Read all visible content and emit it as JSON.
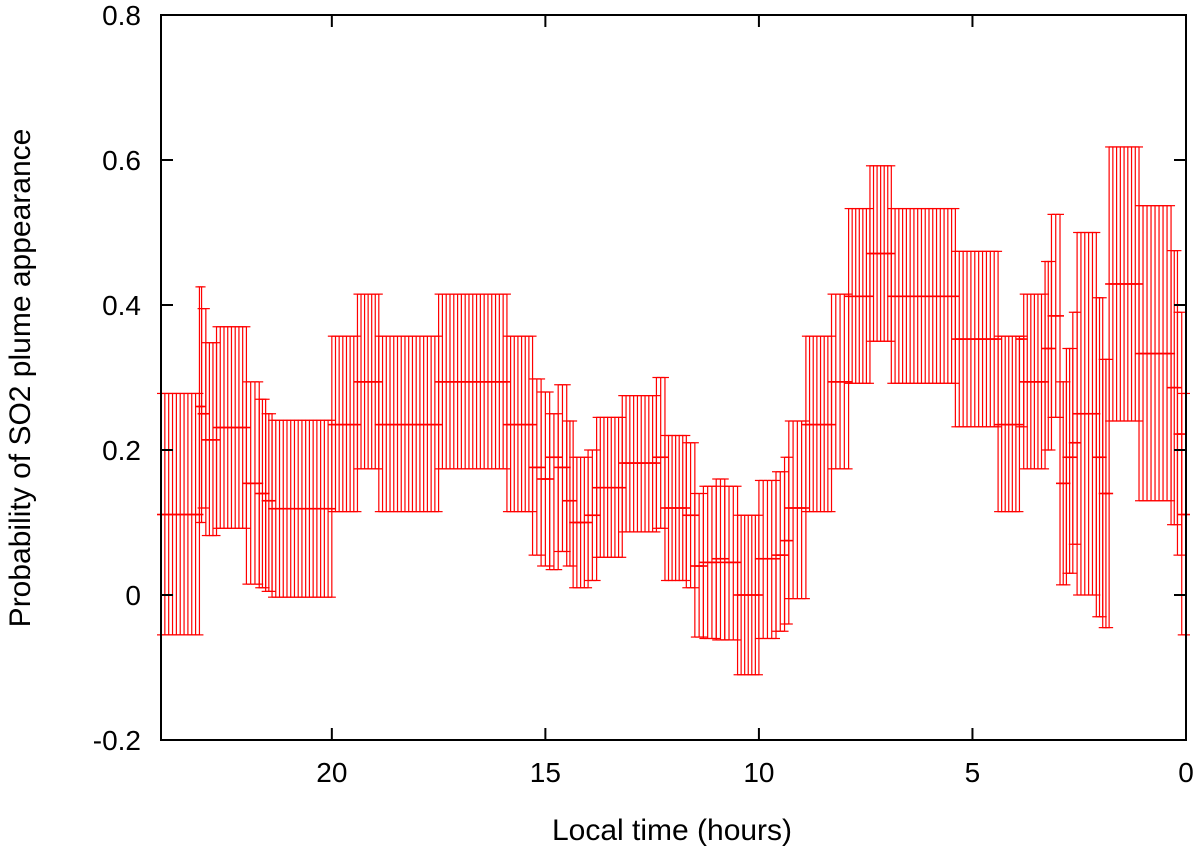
{
  "chart_data": {
    "type": "scatter",
    "xlabel": "Local time (hours)",
    "ylabel": "Probability of SO2 plume appearance",
    "xlim": [
      24,
      0
    ],
    "ylim": [
      -0.2,
      0.8
    ],
    "x_reversed": true,
    "grid": false,
    "xticks": [
      20,
      15,
      10,
      5,
      0
    ],
    "yticks": [
      -0.2,
      0,
      0.2,
      0.4,
      0.6,
      0.8
    ],
    "ytick_labels": [
      "-0.2",
      "0",
      "0.2",
      "0.4",
      "0.6",
      "0.8"
    ],
    "series_color": "#ff0000",
    "segments": [
      {
        "from": 24.0,
        "to": 23.1,
        "y": 0.111,
        "lo": -0.055,
        "hi": 0.278
      },
      {
        "from": 23.1,
        "to": 23.05,
        "y": 0.26,
        "lo": 0.1,
        "hi": 0.425
      },
      {
        "from": 23.05,
        "to": 22.95,
        "y": 0.25,
        "lo": 0.12,
        "hi": 0.395
      },
      {
        "from": 22.95,
        "to": 22.7,
        "y": 0.214,
        "lo": 0.082,
        "hi": 0.348
      },
      {
        "from": 22.7,
        "to": 22.0,
        "y": 0.231,
        "lo": 0.092,
        "hi": 0.37
      },
      {
        "from": 22.0,
        "to": 21.7,
        "y": 0.154,
        "lo": 0.015,
        "hi": 0.294
      },
      {
        "from": 21.7,
        "to": 21.55,
        "y": 0.14,
        "lo": 0.01,
        "hi": 0.27
      },
      {
        "from": 21.55,
        "to": 21.4,
        "y": 0.13,
        "lo": 0.005,
        "hi": 0.25
      },
      {
        "from": 21.4,
        "to": 20.0,
        "y": 0.119,
        "lo": -0.003,
        "hi": 0.241
      },
      {
        "from": 20.0,
        "to": 19.4,
        "y": 0.235,
        "lo": 0.115,
        "hi": 0.357
      },
      {
        "from": 19.4,
        "to": 18.9,
        "y": 0.294,
        "lo": 0.174,
        "hi": 0.415
      },
      {
        "from": 18.9,
        "to": 17.5,
        "y": 0.235,
        "lo": 0.115,
        "hi": 0.357
      },
      {
        "from": 17.5,
        "to": 15.9,
        "y": 0.294,
        "lo": 0.174,
        "hi": 0.415
      },
      {
        "from": 15.9,
        "to": 15.3,
        "y": 0.235,
        "lo": 0.115,
        "hi": 0.357
      },
      {
        "from": 15.3,
        "to": 15.1,
        "y": 0.176,
        "lo": 0.055,
        "hi": 0.298
      },
      {
        "from": 15.1,
        "to": 14.9,
        "y": 0.16,
        "lo": 0.04,
        "hi": 0.28
      },
      {
        "from": 14.9,
        "to": 14.7,
        "y": 0.19,
        "lo": 0.035,
        "hi": 0.25
      },
      {
        "from": 14.7,
        "to": 14.5,
        "y": 0.176,
        "lo": 0.06,
        "hi": 0.29
      },
      {
        "from": 14.5,
        "to": 14.35,
        "y": 0.13,
        "lo": 0.04,
        "hi": 0.24
      },
      {
        "from": 14.35,
        "to": 14.0,
        "y": 0.1,
        "lo": 0.01,
        "hi": 0.19
      },
      {
        "from": 14.0,
        "to": 13.8,
        "y": 0.11,
        "lo": 0.02,
        "hi": 0.2
      },
      {
        "from": 13.8,
        "to": 13.2,
        "y": 0.148,
        "lo": 0.052,
        "hi": 0.245
      },
      {
        "from": 13.2,
        "to": 12.4,
        "y": 0.182,
        "lo": 0.087,
        "hi": 0.275
      },
      {
        "from": 12.4,
        "to": 12.2,
        "y": 0.19,
        "lo": 0.092,
        "hi": 0.3
      },
      {
        "from": 12.2,
        "to": 11.7,
        "y": 0.12,
        "lo": 0.02,
        "hi": 0.22
      },
      {
        "from": 11.7,
        "to": 11.5,
        "y": 0.11,
        "lo": 0.01,
        "hi": 0.21
      },
      {
        "from": 11.5,
        "to": 11.3,
        "y": 0.04,
        "lo": -0.058,
        "hi": 0.14
      },
      {
        "from": 11.3,
        "to": 11.0,
        "y": 0.045,
        "lo": -0.06,
        "hi": 0.15
      },
      {
        "from": 11.0,
        "to": 10.8,
        "y": 0.05,
        "lo": -0.062,
        "hi": 0.16
      },
      {
        "from": 10.8,
        "to": 10.5,
        "y": 0.045,
        "lo": -0.062,
        "hi": 0.15
      },
      {
        "from": 10.5,
        "to": 10.0,
        "y": 0.0,
        "lo": -0.11,
        "hi": 0.11
      },
      {
        "from": 10.0,
        "to": 9.6,
        "y": 0.05,
        "lo": -0.06,
        "hi": 0.158
      },
      {
        "from": 9.6,
        "to": 9.4,
        "y": 0.055,
        "lo": -0.05,
        "hi": 0.17
      },
      {
        "from": 9.4,
        "to": 9.3,
        "y": 0.075,
        "lo": -0.04,
        "hi": 0.19
      },
      {
        "from": 9.3,
        "to": 8.9,
        "y": 0.12,
        "lo": -0.005,
        "hi": 0.24
      },
      {
        "from": 8.9,
        "to": 8.3,
        "y": 0.235,
        "lo": 0.115,
        "hi": 0.357
      },
      {
        "from": 8.3,
        "to": 7.9,
        "y": 0.294,
        "lo": 0.174,
        "hi": 0.415
      },
      {
        "from": 7.9,
        "to": 7.4,
        "y": 0.412,
        "lo": 0.292,
        "hi": 0.533
      },
      {
        "from": 7.4,
        "to": 6.9,
        "y": 0.471,
        "lo": 0.35,
        "hi": 0.592
      },
      {
        "from": 6.9,
        "to": 5.4,
        "y": 0.412,
        "lo": 0.292,
        "hi": 0.533
      },
      {
        "from": 5.4,
        "to": 4.4,
        "y": 0.353,
        "lo": 0.232,
        "hi": 0.474
      },
      {
        "from": 4.4,
        "to": 3.9,
        "y": 0.235,
        "lo": 0.115,
        "hi": 0.357
      },
      {
        "from": 3.9,
        "to": 3.8,
        "y": 0.353,
        "lo": 0.232,
        "hi": 0.357
      },
      {
        "from": 3.8,
        "to": 3.3,
        "y": 0.294,
        "lo": 0.174,
        "hi": 0.415
      },
      {
        "from": 3.3,
        "to": 3.15,
        "y": 0.34,
        "lo": 0.2,
        "hi": 0.46
      },
      {
        "from": 3.15,
        "to": 2.95,
        "y": 0.385,
        "lo": 0.245,
        "hi": 0.525
      },
      {
        "from": 2.95,
        "to": 2.8,
        "y": 0.154,
        "lo": 0.014,
        "hi": 0.294
      },
      {
        "from": 2.8,
        "to": 2.65,
        "y": 0.19,
        "lo": 0.03,
        "hi": 0.34
      },
      {
        "from": 2.65,
        "to": 2.55,
        "y": 0.21,
        "lo": 0.07,
        "hi": 0.39
      },
      {
        "from": 2.55,
        "to": 2.1,
        "y": 0.25,
        "lo": 0.0,
        "hi": 0.5
      },
      {
        "from": 2.1,
        "to": 1.95,
        "y": 0.19,
        "lo": -0.03,
        "hi": 0.41
      },
      {
        "from": 1.95,
        "to": 1.8,
        "y": 0.14,
        "lo": -0.045,
        "hi": 0.325
      },
      {
        "from": 1.8,
        "to": 1.1,
        "y": 0.429,
        "lo": 0.24,
        "hi": 0.618
      },
      {
        "from": 1.1,
        "to": 0.35,
        "y": 0.333,
        "lo": 0.13,
        "hi": 0.537
      },
      {
        "from": 0.35,
        "to": 0.2,
        "y": 0.286,
        "lo": 0.097,
        "hi": 0.475
      },
      {
        "from": 0.2,
        "to": 0.1,
        "y": 0.222,
        "lo": 0.055,
        "hi": 0.39
      },
      {
        "from": 0.1,
        "to": 0.0,
        "y": 0.111,
        "lo": -0.055,
        "hi": 0.278
      }
    ]
  }
}
